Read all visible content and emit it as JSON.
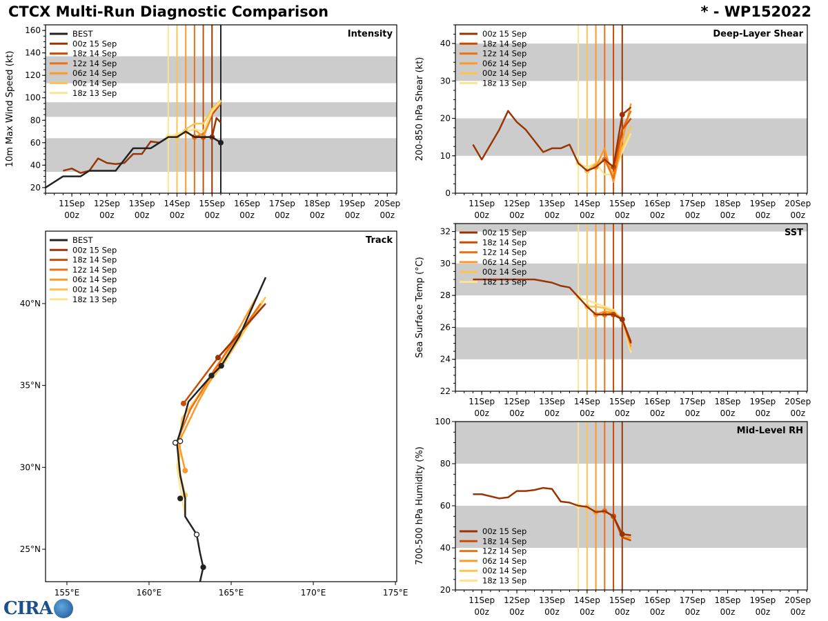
{
  "header": {
    "title": "CTCX Multi-Run Diagnostic Comparison",
    "storm": "* - WP152022"
  },
  "logo": "CIRA",
  "colors": {
    "BEST": "#222222",
    "00z 15 Sep": "#993404",
    "18z 14 Sep": "#cc4c02",
    "12z 14 Sep": "#ec7014",
    "06z 14 Sep": "#fe9929",
    "00z 14 Sep": "#fec44f",
    "18z 13 Sep": "#fee391"
  },
  "time_ticks": {
    "days": [
      11,
      12,
      13,
      14,
      15,
      16,
      17,
      18,
      19,
      20
    ],
    "labels": [
      "11Sep",
      "12Sep",
      "13Sep",
      "14Sep",
      "15Sep",
      "16Sep",
      "17Sep",
      "18Sep",
      "19Sep",
      "20Sep"
    ],
    "hour": "00z"
  },
  "chart_data": [
    {
      "id": "intensity",
      "type": "line",
      "title": "Intensity",
      "ylabel": "10m Max Wind Speed (kt)",
      "xlim": [
        10.25,
        20.27
      ],
      "ylim": [
        15,
        165
      ],
      "yticks": [
        20,
        40,
        60,
        80,
        100,
        120,
        140,
        160
      ],
      "bands": [
        [
          34,
          64
        ],
        [
          83,
          96
        ],
        [
          113,
          137
        ]
      ],
      "init_lines": [
        13.75,
        14.0,
        14.25,
        14.5,
        14.75,
        15.0,
        15.25
      ],
      "legend": [
        "BEST",
        "00z 15 Sep",
        "18z 14 Sep",
        "12z 14 Sep",
        "06z 14 Sep",
        "00z 14 Sep",
        "18z 13 Sep"
      ],
      "series": [
        {
          "name": "00z 15 Sep",
          "x": [
            10.75,
            11,
            11.25,
            11.5,
            11.75,
            12,
            12.25,
            12.5,
            12.75,
            13,
            13.25,
            13.5,
            13.75,
            14,
            14.25,
            14.5,
            14.75,
            15,
            15.125,
            15.25
          ],
          "y": [
            35,
            37,
            33,
            35,
            46,
            42,
            41,
            42,
            50,
            50,
            61,
            60,
            65,
            65,
            70,
            65,
            65,
            65,
            82,
            78
          ],
          "dot": 15
        },
        {
          "name": "18z 14 Sep",
          "x": [
            14.75,
            15,
            15.25
          ],
          "y": [
            65,
            85,
            95
          ],
          "dot": 14.75
        },
        {
          "name": "12z 14 Sep",
          "x": [
            14.5,
            14.75,
            15,
            15.25
          ],
          "y": [
            65,
            68,
            88,
            95
          ],
          "dot": 14.5
        },
        {
          "name": "06z 14 Sep",
          "x": [
            14.25,
            14.5,
            14.75,
            15,
            15.25
          ],
          "y": [
            70,
            72,
            65,
            87,
            97
          ],
          "dot": 14.25
        },
        {
          "name": "00z 14 Sep",
          "x": [
            14,
            14.25,
            14.5,
            14.75,
            15,
            15.25
          ],
          "y": [
            65,
            72,
            77,
            77,
            90,
            98
          ],
          "dot": 14
        },
        {
          "name": "18z 13 Sep",
          "x": [
            13.75,
            14,
            14.25,
            14.5,
            14.75,
            15,
            15.25
          ],
          "y": [
            65,
            68,
            70,
            72,
            70,
            88,
            97
          ],
          "dot": 13.75
        },
        {
          "name": "BEST",
          "x": [
            10.25,
            10.75,
            11.25,
            11.5,
            12.25,
            12.75,
            13.25,
            13.75,
            14,
            14.25,
            14.5,
            14.75,
            15,
            15.25
          ],
          "y": [
            20,
            30,
            30,
            35,
            35,
            55,
            55,
            65,
            65,
            70,
            65,
            65,
            65,
            60
          ],
          "dot": 15.25
        }
      ]
    },
    {
      "id": "shear",
      "type": "line",
      "title": "Deep-Layer Shear",
      "ylabel": "200-850 hPa Shear (kt)",
      "xlim": [
        10.25,
        20.27
      ],
      "ylim": [
        0,
        45
      ],
      "yticks": [
        0,
        10,
        20,
        30,
        40
      ],
      "bands": [
        [
          10,
          20
        ],
        [
          30,
          40
        ]
      ],
      "init_lines": [
        13.75,
        14.0,
        14.25,
        14.5,
        14.75,
        15.0
      ],
      "legend": [
        "00z 15 Sep",
        "18z 14 Sep",
        "12z 14 Sep",
        "06z 14 Sep",
        "00z 14 Sep",
        "18z 13 Sep"
      ],
      "series": [
        {
          "name": "18z 13 Sep",
          "x": [
            13.75,
            14,
            14.25,
            14.5,
            14.75,
            15,
            15.25
          ],
          "y": [
            8,
            7,
            8,
            5,
            5,
            11,
            16
          ],
          "dot": 13.75
        },
        {
          "name": "00z 14 Sep",
          "x": [
            14,
            14.25,
            14.5,
            14.75,
            15,
            15.25
          ],
          "y": [
            6,
            8,
            9,
            5,
            12,
            18
          ],
          "dot": 14
        },
        {
          "name": "06z 14 Sep",
          "x": [
            14.25,
            14.5,
            14.75,
            15,
            15.25
          ],
          "y": [
            7,
            12,
            3,
            14,
            24
          ],
          "dot": 14.25
        },
        {
          "name": "12z 14 Sep",
          "x": [
            14.5,
            14.75,
            15,
            15.25
          ],
          "y": [
            9,
            4,
            17,
            22
          ],
          "dot": 14.5
        },
        {
          "name": "18z 14 Sep",
          "x": [
            14.75,
            15,
            15.25
          ],
          "y": [
            7,
            17,
            20
          ],
          "dot": 14.75
        },
        {
          "name": "00z 15 Sep",
          "x": [
            10.75,
            11,
            11.5,
            11.75,
            12,
            12.25,
            12.75,
            13,
            13.25,
            13.5,
            13.75,
            14,
            14.25,
            14.5,
            14.75,
            15,
            15.25
          ],
          "y": [
            13,
            9,
            17,
            22,
            19,
            17,
            11,
            12,
            12,
            13,
            8,
            6,
            7,
            9,
            7,
            21,
            23
          ],
          "dot": 15
        }
      ]
    },
    {
      "id": "sst",
      "type": "line",
      "title": "SST",
      "ylabel": "Sea Surface Temp (°C)",
      "xlim": [
        10.25,
        20.27
      ],
      "ylim": [
        22,
        32.5
      ],
      "yticks": [
        22,
        24,
        26,
        28,
        30,
        32
      ],
      "bands": [
        [
          24,
          26
        ],
        [
          28,
          30
        ],
        [
          32,
          33
        ]
      ],
      "init_lines": [
        13.75,
        14.0,
        14.25,
        14.5,
        14.75,
        15.0
      ],
      "legend": [
        "00z 15 Sep",
        "18z 14 Sep",
        "12z 14 Sep",
        "06z 14 Sep",
        "00z 14 Sep",
        "18z 13 Sep"
      ],
      "series": [
        {
          "name": "18z 13 Sep",
          "x": [
            13.75,
            14,
            14.25,
            14.5,
            14.75,
            15,
            15.25
          ],
          "y": [
            27.9,
            27.7,
            27.5,
            27.3,
            27.1,
            26.5,
            24.4
          ],
          "dot": 13.75
        },
        {
          "name": "00z 14 Sep",
          "x": [
            14,
            14.25,
            14.5,
            14.75,
            15,
            15.25
          ],
          "y": [
            27.3,
            27.3,
            27.2,
            27.0,
            26.5,
            24.6
          ],
          "dot": 14
        },
        {
          "name": "06z 14 Sep",
          "x": [
            14.25,
            14.5,
            14.75,
            15,
            15.25
          ],
          "y": [
            26.8,
            27.0,
            26.9,
            26.5,
            24.8
          ],
          "dot": 14.25
        },
        {
          "name": "12z 14 Sep",
          "x": [
            14.5,
            14.75,
            15,
            15.25
          ],
          "y": [
            26.8,
            26.9,
            26.5,
            25.0
          ],
          "dot": 14.5
        },
        {
          "name": "18z 14 Sep",
          "x": [
            14.75,
            15,
            15.25
          ],
          "y": [
            26.8,
            26.5,
            25.1
          ],
          "dot": 14.75
        },
        {
          "name": "00z 15 Sep",
          "x": [
            10.75,
            11,
            11.5,
            12,
            12.5,
            13,
            13.25,
            13.5,
            13.75,
            14,
            14.25,
            14.5,
            14.75,
            15,
            15.25
          ],
          "y": [
            29,
            29,
            29,
            29,
            29,
            28.8,
            28.6,
            28.5,
            27.9,
            27.3,
            26.8,
            26.8,
            26.8,
            26.5,
            25.0
          ],
          "dot": 15
        }
      ]
    },
    {
      "id": "rh",
      "type": "line",
      "title": "Mid-Level RH",
      "ylabel": "700-500 hPa Humidity (%)",
      "xlim": [
        10.25,
        20.27
      ],
      "ylim": [
        20,
        100
      ],
      "yticks": [
        20,
        40,
        60,
        80,
        100
      ],
      "bands": [
        [
          40,
          60
        ],
        [
          80,
          100
        ]
      ],
      "init_lines": [
        13.75,
        14.0,
        14.25,
        14.5,
        14.75,
        15.0
      ],
      "legend": [
        "00z 15 Sep",
        "18z 14 Sep",
        "12z 14 Sep",
        "06z 14 Sep",
        "00z 14 Sep",
        "18z 13 Sep"
      ],
      "series": [
        {
          "name": "18z 13 Sep",
          "x": [
            13.75,
            14,
            14.25,
            14.5,
            14.75,
            15,
            15.25
          ],
          "y": [
            60,
            59.5,
            57,
            57.5,
            55,
            45,
            44
          ],
          "dot": 13.75
        },
        {
          "name": "00z 14 Sep",
          "x": [
            14,
            14.25,
            14.5,
            14.75,
            15,
            15.25
          ],
          "y": [
            59.5,
            57,
            57.5,
            55,
            45,
            44
          ],
          "dot": 14
        },
        {
          "name": "06z 14 Sep",
          "x": [
            14.25,
            14.5,
            14.75,
            15,
            15.25
          ],
          "y": [
            57,
            57.5,
            55,
            45,
            45
          ],
          "dot": 14.25
        },
        {
          "name": "12z 14 Sep",
          "x": [
            14.5,
            14.75,
            15,
            15.25
          ],
          "y": [
            57.5,
            55,
            45,
            43.5
          ],
          "dot": 14.5
        },
        {
          "name": "18z 14 Sep",
          "x": [
            14.75,
            15,
            15.25
          ],
          "y": [
            55,
            45,
            43.5
          ],
          "dot": 14.75
        },
        {
          "name": "00z 15 Sep",
          "x": [
            10.75,
            11,
            11.5,
            11.75,
            12,
            12.25,
            12.5,
            12.75,
            13,
            13.25,
            13.5,
            13.75,
            14,
            14.25,
            14.5,
            14.75,
            15,
            15.25
          ],
          "y": [
            65.5,
            65.5,
            63.5,
            64,
            67,
            67,
            67.5,
            68.5,
            68,
            62,
            61.5,
            60,
            59.5,
            57,
            57.5,
            55,
            46.5,
            46
          ],
          "dot": 15
        }
      ]
    },
    {
      "id": "track",
      "type": "line",
      "title": "Track",
      "xlim": [
        153.7,
        175.08
      ],
      "ylim": [
        23.02,
        44.42
      ],
      "xticks": [
        155,
        160,
        165,
        170,
        175
      ],
      "xticklabels": [
        "155°E",
        "160°E",
        "165°E",
        "170°E",
        "175°E"
      ],
      "yticks": [
        25,
        30,
        35,
        40
      ],
      "yticklabels": [
        "25°N",
        "30°N",
        "35°N",
        "40°N"
      ],
      "legend": [
        "BEST",
        "00z 15 Sep",
        "18z 14 Sep",
        "12z 14 Sep",
        "06z 14 Sep",
        "00z 14 Sep",
        "18z 13 Sep"
      ],
      "series": [
        {
          "name": "18z 13 Sep",
          "x": [
            162.2,
            161.7,
            162.0,
            164.5,
            166.9
          ],
          "y": [
            27.0,
            30.0,
            33.0,
            36.5,
            40.2
          ]
        },
        {
          "name": "00z 14 Sep",
          "x": [
            162.2,
            161.8,
            162.0,
            164.6,
            167.1
          ],
          "y": [
            28.3,
            30.0,
            33.0,
            36.4,
            40.4
          ],
          "dot": 0
        },
        {
          "name": "06z 14 Sep",
          "x": [
            162.2,
            161.8,
            163.0,
            166.6
          ],
          "y": [
            29.8,
            31.5,
            34.0,
            40.5
          ],
          "dot": 0
        },
        {
          "name": "12z 14 Sep",
          "x": [
            161.7,
            162.5,
            164.0,
            166.8
          ],
          "y": [
            31.6,
            33.5,
            36.0,
            40.0
          ]
        },
        {
          "name": "18z 14 Sep",
          "x": [
            162.1,
            164.2,
            167.0
          ],
          "y": [
            33.9,
            36.7,
            39.9
          ],
          "dot": 0
        },
        {
          "name": "00z 15 Sep",
          "x": [
            164.2,
            167.1
          ],
          "y": [
            36.7,
            40.0
          ],
          "dot": 0
        },
        {
          "name": "BEST",
          "x": [
            163.1,
            163.3,
            163.1,
            162.9,
            162.2,
            162.2,
            161.9,
            161.7,
            162.0,
            162.4,
            163.8,
            164.4,
            165.5,
            167.1
          ],
          "y": [
            23.0,
            23.9,
            24.8,
            25.9,
            27.0,
            28.1,
            29.5,
            31.5,
            32.5,
            34.0,
            35.6,
            36.2,
            38.0,
            41.6
          ],
          "points": [
            [
              163.3,
              23.9,
              "filled"
            ],
            [
              162.9,
              25.9,
              "open"
            ],
            [
              161.9,
              28.1,
              "filled"
            ],
            [
              161.9,
              31.6,
              "open"
            ],
            [
              161.6,
              31.5,
              "open"
            ],
            [
              163.8,
              35.6,
              "filled"
            ],
            [
              164.4,
              36.2,
              "filled"
            ]
          ]
        }
      ]
    }
  ]
}
